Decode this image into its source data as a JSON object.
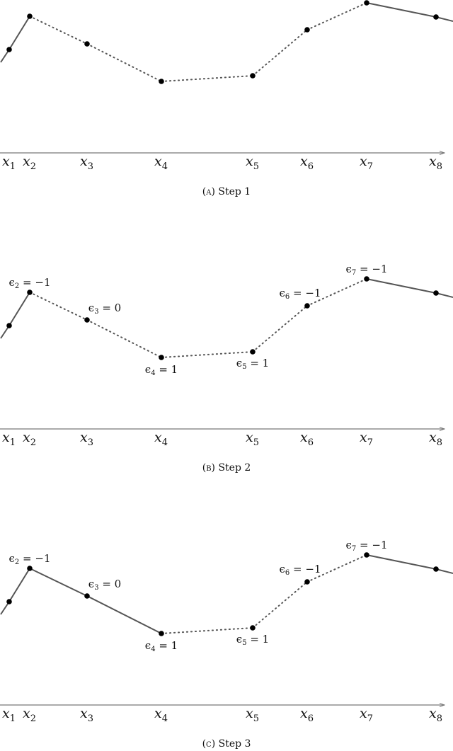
{
  "panels": [
    {
      "caption": {
        "tag": "A",
        "label": "Step 1"
      },
      "segments": [
        "solid",
        "dotted",
        "dotted",
        "dotted",
        "dotted",
        "dotted",
        "solid"
      ],
      "epsilons": {},
      "axis_labels": [
        {
          "var": "x",
          "sub": "1"
        },
        {
          "var": "x",
          "sub": "2"
        },
        {
          "var": "x",
          "sub": "3"
        },
        {
          "var": "x",
          "sub": "4"
        },
        {
          "var": "x",
          "sub": "5"
        },
        {
          "var": "x",
          "sub": "6"
        },
        {
          "var": "x",
          "sub": "7"
        },
        {
          "var": "x",
          "sub": "8"
        }
      ]
    },
    {
      "caption": {
        "tag": "B",
        "label": "Step 2"
      },
      "segments": [
        "solid",
        "dotted",
        "dotted",
        "dotted",
        "dotted",
        "dotted",
        "solid"
      ],
      "epsilons": {
        "2": {
          "text": "ϵ₂ = −1",
          "sub": "2",
          "value": "−1"
        },
        "3": {
          "text": "ϵ₃ = 0",
          "sub": "3",
          "value": "0"
        },
        "4": {
          "text": "ϵ₄ = 1",
          "sub": "4",
          "value": "1"
        },
        "5": {
          "text": "ϵ₅ = 1",
          "sub": "5",
          "value": "1"
        },
        "6": {
          "text": "ϵ₆ = −1",
          "sub": "6",
          "value": "−1"
        },
        "7": {
          "text": "ϵ₇ = −1",
          "sub": "7",
          "value": "−1"
        }
      },
      "axis_labels": [
        {
          "var": "x",
          "sub": "1"
        },
        {
          "var": "x",
          "sub": "2"
        },
        {
          "var": "x",
          "sub": "3"
        },
        {
          "var": "x",
          "sub": "4"
        },
        {
          "var": "x",
          "sub": "5"
        },
        {
          "var": "x",
          "sub": "6"
        },
        {
          "var": "x",
          "sub": "7"
        },
        {
          "var": "x",
          "sub": "8"
        }
      ]
    },
    {
      "caption": {
        "tag": "C",
        "label": "Step 3"
      },
      "segments": [
        "solid",
        "solid",
        "solid",
        "dotted",
        "dotted",
        "dotted",
        "solid"
      ],
      "epsilons": {
        "2": {
          "text": "ϵ₂ = −1",
          "sub": "2",
          "value": "−1"
        },
        "3": {
          "text": "ϵ₃ = 0",
          "sub": "3",
          "value": "0"
        },
        "4": {
          "text": "ϵ₄ = 1",
          "sub": "4",
          "value": "1"
        },
        "5": {
          "text": "ϵ₅ = 1",
          "sub": "5",
          "value": "1"
        },
        "6": {
          "text": "ϵ₆ = −1",
          "sub": "6",
          "value": "−1"
        },
        "7": {
          "text": "ϵ₇ = −1",
          "sub": "7",
          "value": "−1"
        }
      },
      "axis_labels": [
        {
          "var": "x",
          "sub": "1"
        },
        {
          "var": "x",
          "sub": "2"
        },
        {
          "var": "x",
          "sub": "3"
        },
        {
          "var": "x",
          "sub": "4"
        },
        {
          "var": "x",
          "sub": "5"
        },
        {
          "var": "x",
          "sub": "6"
        },
        {
          "var": "x",
          "sub": "7"
        },
        {
          "var": "x",
          "sub": "8"
        }
      ]
    }
  ],
  "colors": {
    "line": "#555555",
    "point": "#000000",
    "axis": "#777777",
    "text": "#111111"
  }
}
